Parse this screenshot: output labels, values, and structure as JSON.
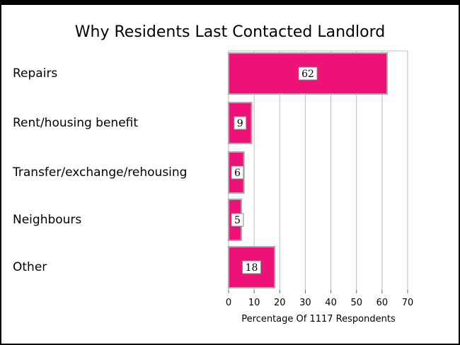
{
  "chart_data": {
    "type": "bar",
    "orientation": "horizontal",
    "title": "Why Residents Last Contacted Landlord",
    "categories": [
      "Repairs",
      "Rent/housing benefit",
      "Transfer/exchange/rehousing",
      "Neighbours",
      "Other"
    ],
    "values": [
      62,
      9,
      6,
      5,
      18
    ],
    "xlabel": "Percentage Of 1117 Respondents",
    "ylabel": "",
    "xlim": [
      0,
      70
    ],
    "xticks": [
      0,
      10,
      20,
      30,
      40,
      50,
      60,
      70
    ],
    "grid": true,
    "bar_color": "#ee1177",
    "bar_border_color": "#aaaaaa",
    "grid_color": "#bbbbbb"
  }
}
